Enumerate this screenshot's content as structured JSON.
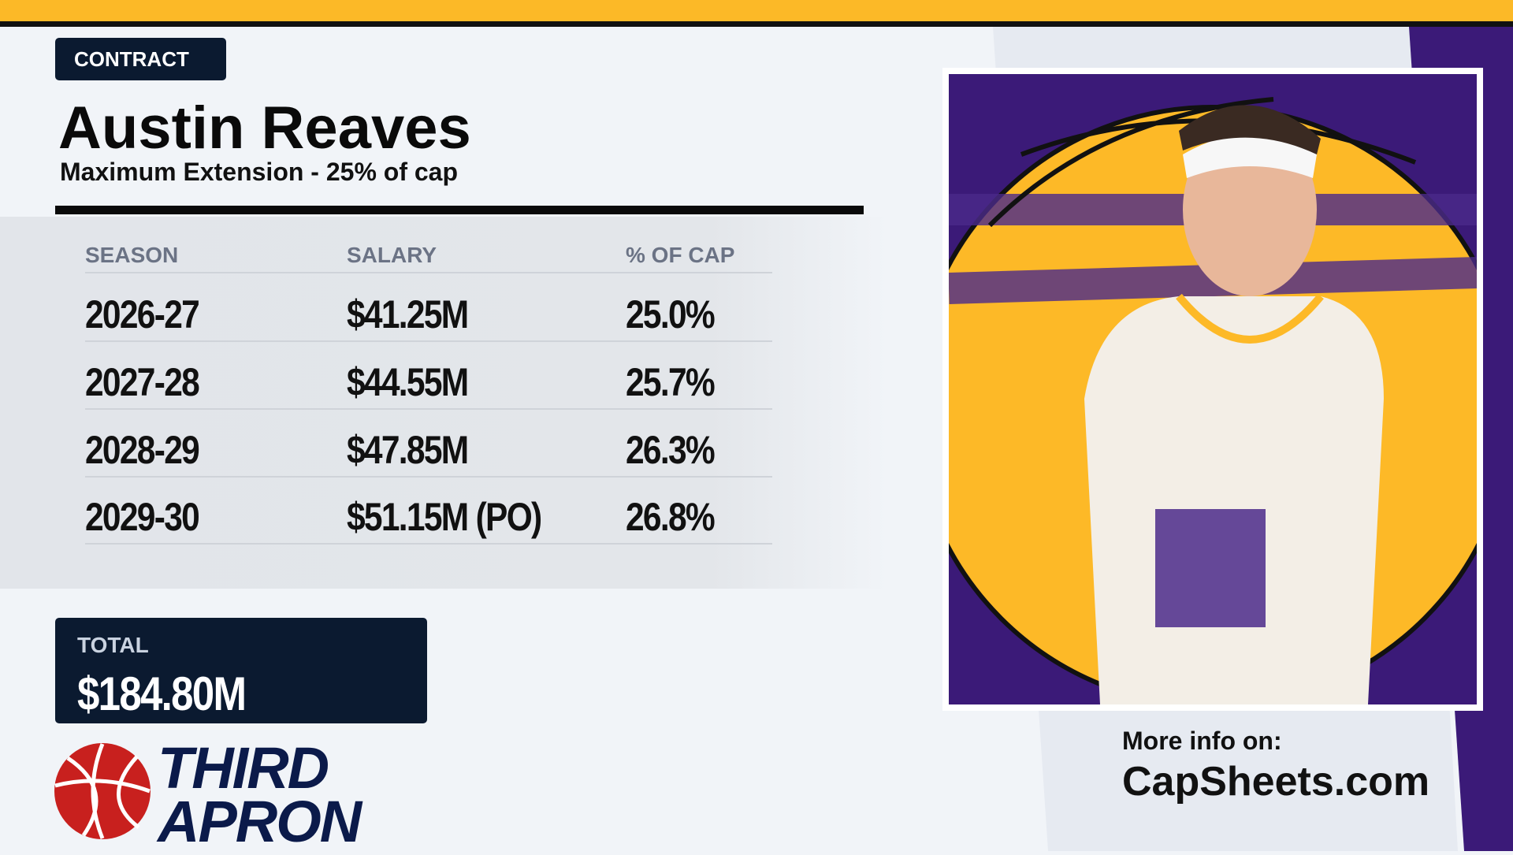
{
  "badge": "CONTRACT",
  "player": {
    "name": "Austin Reaves",
    "subtitle": "Maximum Extension - 25% of cap"
  },
  "table": {
    "columns": [
      "SEASON",
      "SALARY",
      "% OF CAP"
    ],
    "rows": [
      [
        "2026-27",
        "$41.25M",
        "25.0%"
      ],
      [
        "2027-28",
        "$44.55M",
        "25.7%"
      ],
      [
        "2028-29",
        "$47.85M",
        "26.3%"
      ],
      [
        "2029-30",
        "$51.15M (PO)",
        "26.8%"
      ]
    ]
  },
  "total": {
    "label": "TOTAL",
    "value": "$184.80M"
  },
  "logo": {
    "line1": "THIRD",
    "line2": "APRON"
  },
  "footer": {
    "label": "More info on:",
    "site": "CapSheets.com"
  }
}
